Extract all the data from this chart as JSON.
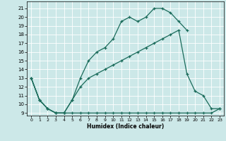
{
  "xlabel": "Humidex (Indice chaleur)",
  "background_color": "#cce8e8",
  "grid_color": "#b8d8d8",
  "line_color": "#1a6b5a",
  "xlim": [
    -0.5,
    23.5
  ],
  "ylim": [
    8.7,
    21.8
  ],
  "xticks": [
    0,
    1,
    2,
    3,
    4,
    5,
    6,
    7,
    8,
    9,
    10,
    11,
    12,
    13,
    14,
    15,
    16,
    17,
    18,
    19,
    20,
    21,
    22,
    23
  ],
  "yticks": [
    9,
    10,
    11,
    12,
    13,
    14,
    15,
    16,
    17,
    18,
    19,
    20,
    21
  ],
  "line1_x": [
    0,
    1,
    2,
    3,
    4,
    5,
    6,
    7,
    8,
    9,
    10,
    11,
    12,
    13,
    14,
    15,
    16,
    17,
    18,
    19,
    20,
    21,
    22,
    23
  ],
  "line1_y": [
    13,
    10.5,
    9.5,
    9.0,
    9.0,
    9.0,
    9.0,
    9.0,
    9.0,
    9.0,
    9.0,
    9.0,
    9.0,
    9.0,
    9.0,
    9.0,
    9.0,
    9.0,
    9.0,
    9.0,
    9.0,
    9.0,
    9.0,
    9.5
  ],
  "line2_x": [
    0,
    1,
    2,
    3,
    4,
    5,
    6,
    7,
    8,
    9,
    10,
    11,
    12,
    13,
    14,
    15,
    16,
    17,
    18,
    19,
    20,
    21,
    22,
    23
  ],
  "line2_y": [
    13,
    10.5,
    9.5,
    9.0,
    9.0,
    10.5,
    12.0,
    13.0,
    13.5,
    14.0,
    14.5,
    15.0,
    15.5,
    16.0,
    16.5,
    17.0,
    17.5,
    18.0,
    18.5,
    13.5,
    11.5,
    11.0,
    9.5,
    9.5
  ],
  "line3_x": [
    0,
    1,
    2,
    3,
    4,
    5,
    6,
    7,
    8,
    9,
    10,
    11,
    12,
    13,
    14,
    15,
    16,
    17,
    18,
    19
  ],
  "line3_y": [
    13,
    10.5,
    9.5,
    9.0,
    9.0,
    10.5,
    13.0,
    15.0,
    16.0,
    16.5,
    17.5,
    19.5,
    20.0,
    19.5,
    20.0,
    21.0,
    21.0,
    20.5,
    19.5,
    18.5
  ]
}
